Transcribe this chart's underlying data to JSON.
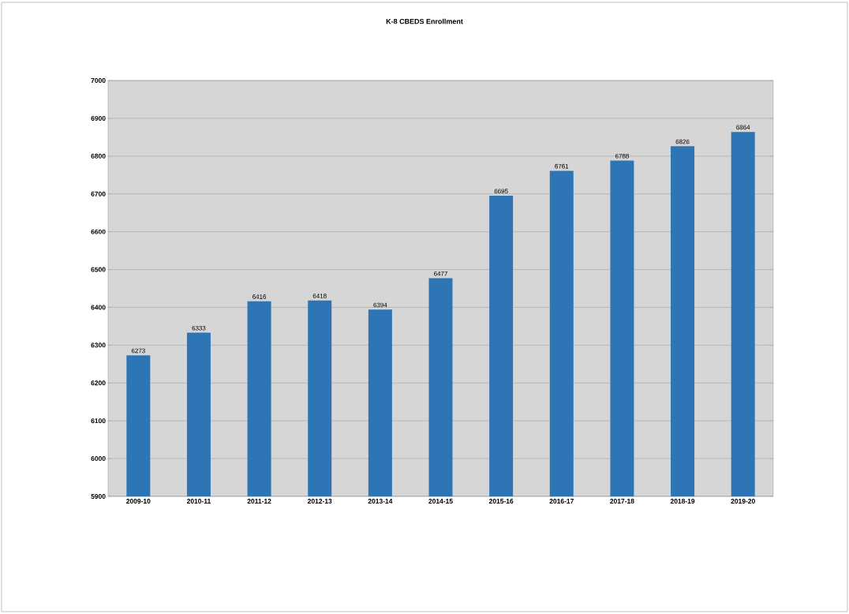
{
  "chart_data": {
    "type": "bar",
    "title": "K-8 CBEDS Enrollment",
    "categories": [
      "2009-10",
      "2010-11",
      "2011-12",
      "2012-13",
      "2013-14",
      "2014-15",
      "2015-16",
      "2016-17",
      "2017-18",
      "2018-19",
      "2019-20"
    ],
    "values": [
      6273,
      6333,
      6416,
      6418,
      6394,
      6477,
      6695,
      6761,
      6788,
      6826,
      6864
    ],
    "color": "#2e75b6",
    "ylim": [
      5900,
      7000
    ],
    "yticks": [
      5900,
      6000,
      6100,
      6200,
      6300,
      6400,
      6500,
      6600,
      6700,
      6800,
      6900,
      7000
    ],
    "grid": "y",
    "data_labels": true
  }
}
